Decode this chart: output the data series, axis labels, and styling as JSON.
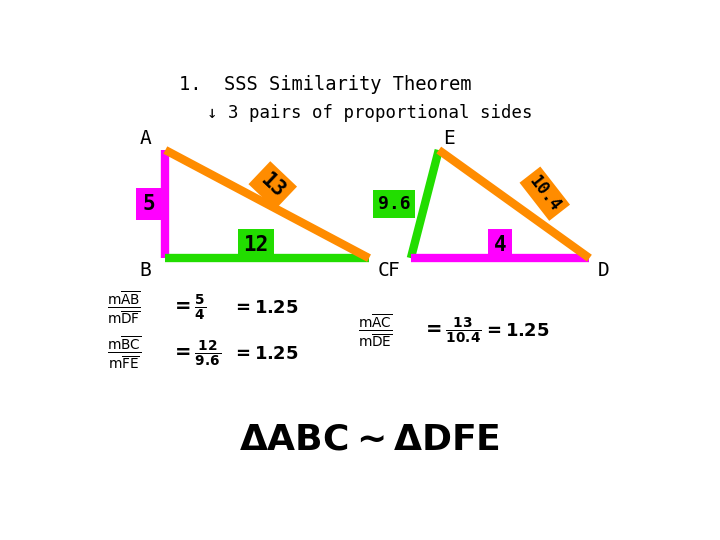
{
  "bg_color": "#ffffff",
  "title_line1": "1.  SSS Similarity Theorem",
  "title_line2": "↓ 3 pairs of proportional sides",
  "tri1": {
    "A": [
      0.135,
      0.795
    ],
    "B": [
      0.135,
      0.535
    ],
    "C": [
      0.5,
      0.535
    ],
    "label_A": "A",
    "label_B": "B",
    "label_C": "C"
  },
  "tri2": {
    "E": [
      0.625,
      0.795
    ],
    "F": [
      0.575,
      0.535
    ],
    "D": [
      0.895,
      0.535
    ],
    "label_E": "E",
    "label_F": "F",
    "label_D": "D"
  },
  "orange": "#ff8c00",
  "green": "#22dd00",
  "magenta": "#ff00ff",
  "line_width": 6,
  "label_fontsize": 14
}
